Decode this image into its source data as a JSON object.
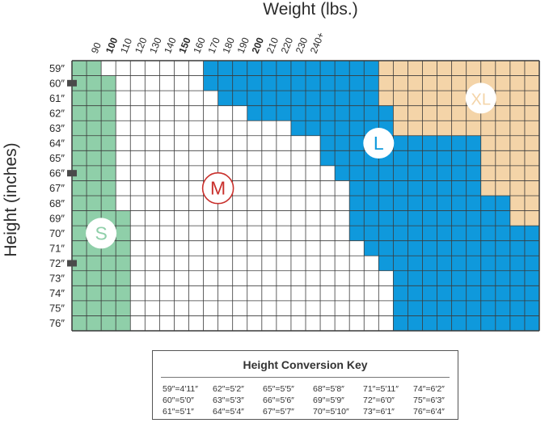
{
  "chart_data": {
    "type": "heatmap",
    "title": "",
    "xlabel": "Weight (lbs.)",
    "ylabel": "Height (inches)",
    "x_ticks": [
      "90",
      "100",
      "110",
      "120",
      "130",
      "140",
      "150",
      "160",
      "170",
      "180",
      "190",
      "200",
      "210",
      "220",
      "230",
      "240+"
    ],
    "x_bold_ticks": [
      "100",
      "150",
      "200"
    ],
    "y_ticks": [
      "59″",
      "60″",
      "61″",
      "62″",
      "63″",
      "64″",
      "65″",
      "66″",
      "67″",
      "68″",
      "69″",
      "70″",
      "71″",
      "72″",
      "73″",
      "74″",
      "75″",
      "76″"
    ],
    "y_marked_ticks": [
      "60″",
      "66″",
      "72″"
    ],
    "weight_min": 85,
    "weight_max": 245,
    "weight_step": 5,
    "height_min": 59,
    "height_max": 76,
    "size_regions": [
      {
        "label": "S",
        "color": "#8fcfa9"
      },
      {
        "label": "M",
        "color": "#ffffff"
      },
      {
        "label": "L",
        "color": "#0f99dc"
      },
      {
        "label": "XL",
        "color": "#f4d4a8"
      }
    ],
    "size_boundaries": [
      {
        "height": 59,
        "s_max": 95,
        "m_max": 130,
        "l_max": 190
      },
      {
        "height": 60,
        "s_max": 100,
        "m_max": 130,
        "l_max": 190
      },
      {
        "height": 61,
        "s_max": 100,
        "m_max": 135,
        "l_max": 190
      },
      {
        "height": 62,
        "s_max": 100,
        "m_max": 145,
        "l_max": 195
      },
      {
        "height": 63,
        "s_max": 100,
        "m_max": 160,
        "l_max": 195
      },
      {
        "height": 64,
        "s_max": 100,
        "m_max": 170,
        "l_max": 225
      },
      {
        "height": 65,
        "s_max": 100,
        "m_max": 170,
        "l_max": 225
      },
      {
        "height": 66,
        "s_max": 100,
        "m_max": 175,
        "l_max": 225
      },
      {
        "height": 67,
        "s_max": 100,
        "m_max": 180,
        "l_max": 225
      },
      {
        "height": 68,
        "s_max": 100,
        "m_max": 180,
        "l_max": 235
      },
      {
        "height": 69,
        "s_max": 105,
        "m_max": 180,
        "l_max": 235
      },
      {
        "height": 70,
        "s_max": 105,
        "m_max": 180,
        "l_max": 245
      },
      {
        "height": 71,
        "s_max": 105,
        "m_max": 185,
        "l_max": 245
      },
      {
        "height": 72,
        "s_max": 105,
        "m_max": 190,
        "l_max": 245
      },
      {
        "height": 73,
        "s_max": 105,
        "m_max": 195,
        "l_max": 245
      },
      {
        "height": 74,
        "s_max": 105,
        "m_max": 195,
        "l_max": 245
      },
      {
        "height": 75,
        "s_max": 105,
        "m_max": 195,
        "l_max": 245
      },
      {
        "height": 76,
        "s_max": 105,
        "m_max": 195,
        "l_max": 245
      }
    ],
    "region_labels": [
      {
        "label": "S",
        "weight": 95,
        "height": 70.5,
        "style": "filled"
      },
      {
        "label": "M",
        "weight": 135,
        "height": 67.5,
        "style": "outline"
      },
      {
        "label": "L",
        "weight": 190,
        "height": 64.5,
        "style": "filled"
      },
      {
        "label": "XL",
        "weight": 225,
        "height": 61.5,
        "style": "filled"
      }
    ],
    "colors": {
      "grid_line": "#3a3a3a",
      "label_text": "#2b2b2b",
      "tick_mark": "#4a4a4a",
      "s_text": "#8fcfa9",
      "m_ring": "#c9302c",
      "l_text": "#0f99dc",
      "xl_text": "#f4d4a8"
    }
  },
  "conversion_key": {
    "title": "Height Conversion Key",
    "entries": [
      "59″=4′11″",
      "62″=5′2″",
      "65″=5′5″",
      "68″=5′8″",
      "71″=5′11″",
      "74″=6′2″",
      "60″=5′0″",
      "63″=5′3″",
      "66″=5′6″",
      "69″=5′9″",
      "72″=6′0″",
      "75″=6′3″",
      "61″=5′1″",
      "64″=5′4″",
      "67″=5′7″",
      "70″=5′10″",
      "73″=6′1″",
      "76″=6′4″"
    ]
  }
}
